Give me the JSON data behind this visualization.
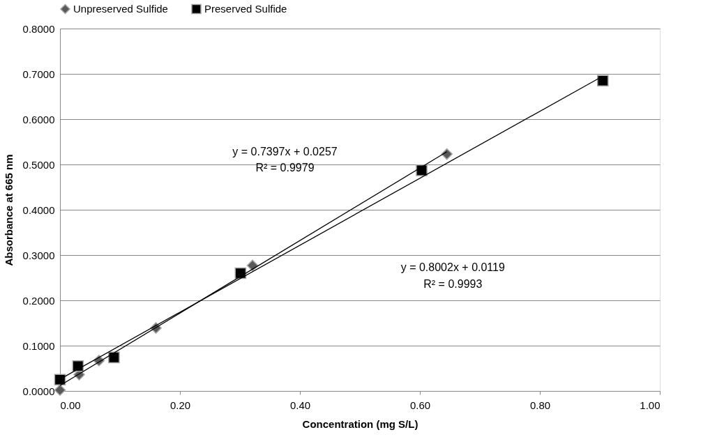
{
  "chart_data": {
    "type": "scatter",
    "xlabel": "Concentration (mg S/L)",
    "ylabel": "Absorbance at 665 nm",
    "xlim": [
      0,
      1
    ],
    "ylim": [
      0,
      0.8
    ],
    "xticks": [
      {
        "value": 0,
        "label": "0.00"
      },
      {
        "value": 0.2,
        "label": "0.20"
      },
      {
        "value": 0.4,
        "label": "0.40"
      },
      {
        "value": 0.6,
        "label": "0.60"
      },
      {
        "value": 0.8,
        "label": "0.80"
      },
      {
        "value": 1,
        "label": "1.00"
      }
    ],
    "yticks": [
      {
        "value": 0,
        "label": "0.0000"
      },
      {
        "value": 0.1,
        "label": "0.1000"
      },
      {
        "value": 0.2,
        "label": "0.2000"
      },
      {
        "value": 0.3,
        "label": "0.3000"
      },
      {
        "value": 0.4,
        "label": "0.4000"
      },
      {
        "value": 0.5,
        "label": "0.5000"
      },
      {
        "value": 0.6,
        "label": "0.6000"
      },
      {
        "value": 0.7,
        "label": "0.7000"
      },
      {
        "value": 0.8,
        "label": "0.8000"
      }
    ],
    "grid": "y",
    "legend": "top",
    "series": [
      {
        "name": "Unpreserved Sulfide",
        "type": "scatter",
        "marker": "diamond",
        "color": "#595959",
        "x": [
          0,
          0.032,
          0.065,
          0.16,
          0.321,
          0.645
        ],
        "values": [
          0.002,
          0.036,
          0.067,
          0.139,
          0.277,
          0.523
        ]
      },
      {
        "name": "Preserved Sulfide",
        "type": "scatter",
        "marker": "square",
        "color": "#000000",
        "x": [
          0,
          0.03,
          0.09,
          0.301,
          0.603,
          0.905
        ],
        "values": [
          0.025,
          0.055,
          0.074,
          0.26,
          0.487,
          0.685
        ]
      },
      {
        "type": "line",
        "marker": "none",
        "color": "#000000",
        "x": [
          0,
          0.645
        ],
        "values": [
          0.012,
          0.528
        ]
      },
      {
        "type": "line",
        "marker": "none",
        "color": "#000000",
        "x": [
          0,
          0.905
        ],
        "values": [
          0.026,
          0.695
        ]
      }
    ],
    "annotations": [
      "y = 0.7397x + 0.0257",
      "R² = 0.9979",
      "y = 0.8002x + 0.0119",
      "R² = 0.9993"
    ]
  }
}
